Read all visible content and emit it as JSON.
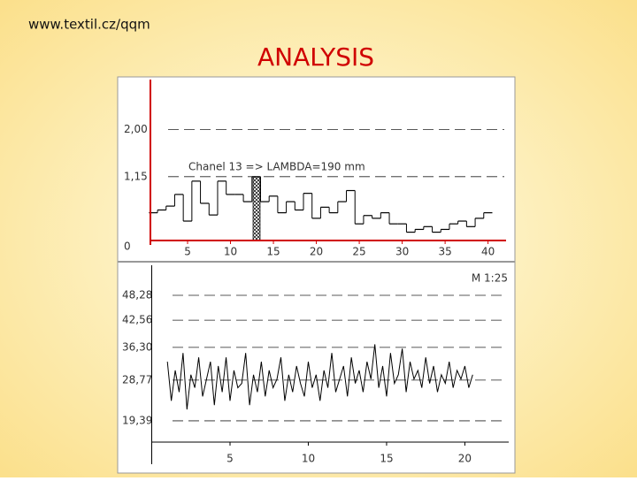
{
  "header": {
    "url": "www.textil.cz/qqm",
    "title": "ANALYSIS"
  },
  "chart_data": [
    {
      "type": "step",
      "annotation": "Chanel 13 => LAMBDA=190 mm",
      "color": "#000000",
      "x": [
        1,
        2,
        3,
        4,
        5,
        6,
        7,
        8,
        9,
        10,
        11,
        12,
        13,
        14,
        15,
        16,
        17,
        18,
        19,
        20,
        21,
        22,
        23,
        24,
        25,
        26,
        27,
        28,
        29,
        30,
        31,
        32,
        33,
        34,
        35,
        36,
        37,
        38,
        39,
        40
      ],
      "values": [
        0.5,
        0.55,
        0.62,
        0.83,
        0.35,
        1.07,
        0.67,
        0.46,
        1.07,
        0.83,
        0.83,
        0.7,
        1.15,
        0.7,
        0.8,
        0.5,
        0.7,
        0.55,
        0.85,
        0.4,
        0.6,
        0.5,
        0.7,
        0.9,
        0.3,
        0.45,
        0.4,
        0.5,
        0.3,
        0.3,
        0.15,
        0.2,
        0.25,
        0.15,
        0.2,
        0.3,
        0.35,
        0.25,
        0.4,
        0.5
      ],
      "xlim": [
        0.67,
        42.1
      ],
      "xticks": [
        5,
        10,
        15,
        20,
        25,
        30,
        35,
        40
      ],
      "ylim": [
        0,
        2.9
      ],
      "yticks": [
        0,
        {
          "value": 1.15,
          "label": "1,15"
        },
        {
          "value": 2,
          "label": "2,00"
        }
      ]
    },
    {
      "type": "line",
      "annotation": "M 1:25",
      "color": "#000000",
      "x": [
        1,
        1.25,
        1.5,
        1.75,
        2,
        2.25,
        2.5,
        2.75,
        3,
        3.25,
        3.5,
        3.75,
        4,
        4.25,
        4.5,
        4.75,
        5,
        5.25,
        5.5,
        5.75,
        6,
        6.25,
        6.5,
        6.75,
        7,
        7.25,
        7.5,
        7.75,
        8,
        8.25,
        8.5,
        8.75,
        9,
        9.25,
        9.5,
        9.75,
        10,
        10.25,
        10.5,
        10.75,
        11,
        11.25,
        11.5,
        11.75,
        12,
        12.25,
        12.5,
        12.75,
        13,
        13.25,
        13.5,
        13.75,
        14,
        14.25,
        14.5,
        14.75,
        15,
        15.25,
        15.5,
        15.75,
        16,
        16.25,
        16.5,
        16.75,
        17,
        17.25,
        17.5,
        17.75,
        18,
        18.25,
        18.5,
        18.75,
        19,
        19.25,
        19.5,
        19.75,
        20,
        20.25,
        20.5
      ],
      "values": [
        33,
        24,
        31,
        26,
        35,
        22,
        30,
        27,
        34,
        25,
        29,
        33,
        23,
        32,
        26,
        34,
        24,
        31,
        27,
        28,
        35,
        23,
        30,
        26,
        33,
        25,
        31,
        27,
        29,
        34,
        24,
        30,
        26,
        32,
        28,
        25,
        33,
        27,
        30,
        24,
        31,
        27,
        35,
        26,
        29,
        32,
        25,
        34,
        28,
        31,
        26,
        33,
        29,
        37,
        27,
        32,
        25,
        35,
        28,
        30,
        36,
        26,
        33,
        29,
        31,
        27,
        34,
        28,
        32,
        26,
        30,
        28,
        33,
        27,
        31,
        29,
        32,
        27,
        30
      ],
      "xlim": [
        0,
        22.8
      ],
      "xticks": [
        5,
        10,
        15,
        20
      ],
      "ylim": [
        9.4,
        55.2
      ],
      "yticks": [
        {
          "value": 19.39,
          "label": "19,39"
        },
        {
          "value": 28.77,
          "label": "28,77"
        },
        {
          "value": 36.3,
          "label": "36,30"
        },
        {
          "value": 42.56,
          "label": "42,56"
        },
        {
          "value": 48.28,
          "label": "48,28"
        }
      ]
    }
  ]
}
